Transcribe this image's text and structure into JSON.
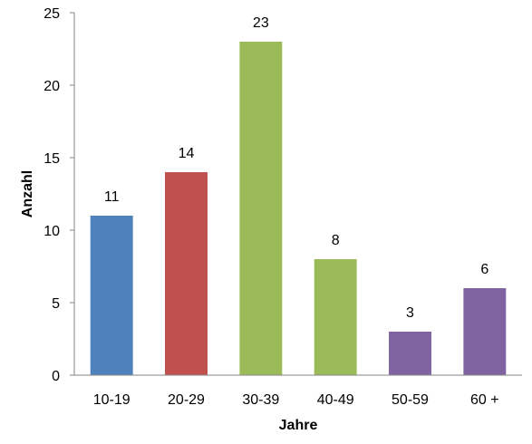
{
  "chart_data": {
    "type": "bar",
    "title": "",
    "xlabel": "Jahre",
    "ylabel": "Anzahl",
    "categories": [
      "10-19",
      "20-29",
      "30-39",
      "40-49",
      "50-59",
      "60 +"
    ],
    "values": [
      11,
      14,
      23,
      8,
      3,
      6
    ],
    "bar_colors": [
      "#4f81bd",
      "#c0504d",
      "#9bbb59",
      "#9bbb59",
      "#8064a2",
      "#8064a2"
    ],
    "ylim": [
      0,
      25
    ],
    "yticks": [
      0,
      5,
      10,
      15,
      20,
      25
    ],
    "grid": false,
    "legend": "none",
    "data_labels": true
  }
}
